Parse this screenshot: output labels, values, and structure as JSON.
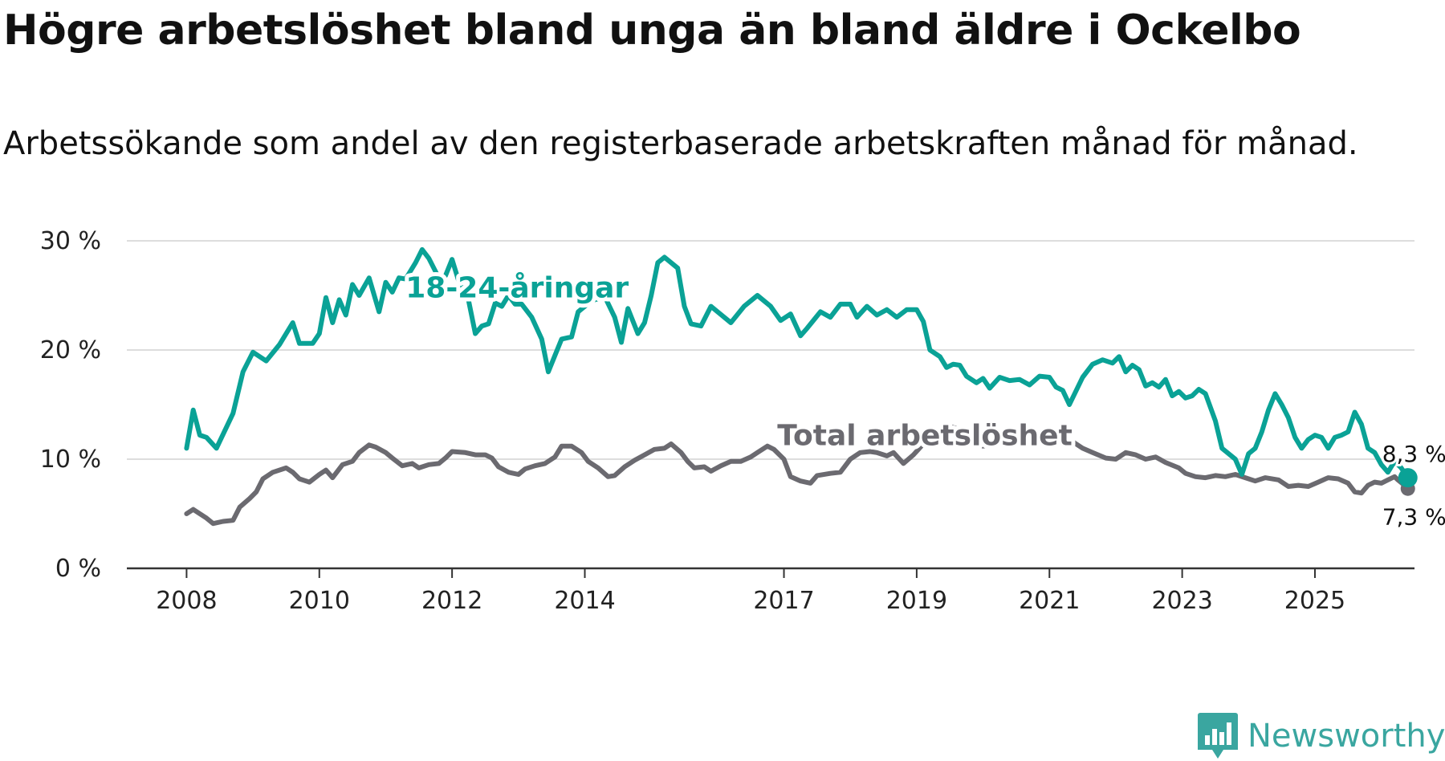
{
  "title": "Högre arbetslöshet bland unga än bland äldre i Ockelbo",
  "subtitle": "Arbetssökande som andel av den registerbaserade arbetskraften månad för månad.",
  "brand": {
    "name": "Newsworthy",
    "icon": "bar-chart-logo-icon"
  },
  "colors": {
    "youth": "#0aa296",
    "total": "#6b6a70",
    "grid": "#dddddd",
    "axis": "#333333",
    "brand": "#3aa6a0"
  },
  "chart_data": {
    "type": "line",
    "title": "Högre arbetslöshet bland unga än bland äldre i Ockelbo",
    "xlabel": "",
    "ylabel": "",
    "ylim": [
      0,
      30
    ],
    "y_ticks": [
      0,
      10,
      20,
      30
    ],
    "y_tick_labels": [
      "0 %",
      "10 %",
      "20 %",
      "30 %"
    ],
    "x_ticks": [
      2008,
      2010,
      2012,
      2014,
      2017,
      2019,
      2021,
      2023,
      2025
    ],
    "x_tick_labels": [
      "2008",
      "2010",
      "2012",
      "2014",
      "2017",
      "2019",
      "2021",
      "2023",
      "2025"
    ],
    "xlim": [
      2007.1,
      2026.5
    ],
    "series": [
      {
        "name": "18-24-åringar",
        "key": "youth",
        "end_label": "8,3 %",
        "points": [
          [
            2008.0,
            11.0
          ],
          [
            2008.1,
            14.5
          ],
          [
            2008.2,
            12.2
          ],
          [
            2008.3,
            12.0
          ],
          [
            2008.45,
            11.0
          ],
          [
            2008.7,
            14.2
          ],
          [
            2008.85,
            18.0
          ],
          [
            2009.0,
            19.8
          ],
          [
            2009.2,
            19.0
          ],
          [
            2009.4,
            20.5
          ],
          [
            2009.6,
            22.5
          ],
          [
            2009.7,
            20.6
          ],
          [
            2009.9,
            20.6
          ],
          [
            2010.0,
            21.5
          ],
          [
            2010.1,
            24.8
          ],
          [
            2010.2,
            22.5
          ],
          [
            2010.3,
            24.6
          ],
          [
            2010.4,
            23.2
          ],
          [
            2010.5,
            26.0
          ],
          [
            2010.6,
            25.0
          ],
          [
            2010.75,
            26.6
          ],
          [
            2010.9,
            23.5
          ],
          [
            2011.0,
            26.2
          ],
          [
            2011.1,
            25.3
          ],
          [
            2011.2,
            26.6
          ],
          [
            2011.3,
            26.5
          ],
          [
            2011.45,
            28.0
          ],
          [
            2011.55,
            29.2
          ],
          [
            2011.65,
            28.4
          ],
          [
            2011.8,
            26.6
          ],
          [
            2011.9,
            26.8
          ],
          [
            2012.0,
            28.3
          ],
          [
            2012.1,
            26.3
          ],
          [
            2012.25,
            24.5
          ],
          [
            2012.35,
            21.5
          ],
          [
            2012.45,
            22.2
          ],
          [
            2012.55,
            22.4
          ],
          [
            2012.65,
            24.3
          ],
          [
            2012.75,
            24.0
          ],
          [
            2012.85,
            25.0
          ],
          [
            2012.95,
            24.2
          ],
          [
            2013.05,
            24.2
          ],
          [
            2013.2,
            23.0
          ],
          [
            2013.35,
            21.0
          ],
          [
            2013.45,
            18.0
          ],
          [
            2013.55,
            19.5
          ],
          [
            2013.65,
            21.0
          ],
          [
            2013.8,
            21.2
          ],
          [
            2013.9,
            23.5
          ],
          [
            2014.1,
            24.5
          ],
          [
            2014.3,
            24.9
          ],
          [
            2014.45,
            23.0
          ],
          [
            2014.55,
            20.7
          ],
          [
            2014.65,
            23.8
          ],
          [
            2014.8,
            21.5
          ],
          [
            2014.9,
            22.5
          ],
          [
            2015.0,
            25.0
          ],
          [
            2015.1,
            28.0
          ],
          [
            2015.2,
            28.5
          ],
          [
            2015.4,
            27.5
          ],
          [
            2015.5,
            24.0
          ],
          [
            2015.6,
            22.4
          ],
          [
            2015.75,
            22.2
          ],
          [
            2015.9,
            24.0
          ],
          [
            2016.0,
            23.5
          ],
          [
            2016.2,
            22.5
          ],
          [
            2016.4,
            24.0
          ],
          [
            2016.6,
            25.0
          ],
          [
            2016.8,
            24.0
          ],
          [
            2016.95,
            22.7
          ],
          [
            2017.1,
            23.3
          ],
          [
            2017.25,
            21.3
          ],
          [
            2017.35,
            22.0
          ],
          [
            2017.55,
            23.5
          ],
          [
            2017.7,
            23.0
          ],
          [
            2017.85,
            24.2
          ],
          [
            2018.0,
            24.2
          ],
          [
            2018.1,
            23.0
          ],
          [
            2018.25,
            24.0
          ],
          [
            2018.4,
            23.2
          ],
          [
            2018.55,
            23.7
          ],
          [
            2018.7,
            23.0
          ],
          [
            2018.85,
            23.7
          ],
          [
            2019.0,
            23.7
          ],
          [
            2019.1,
            22.6
          ],
          [
            2019.2,
            20.0
          ],
          [
            2019.35,
            19.4
          ],
          [
            2019.45,
            18.4
          ],
          [
            2019.55,
            18.7
          ],
          [
            2019.65,
            18.6
          ],
          [
            2019.75,
            17.6
          ],
          [
            2019.9,
            17.0
          ],
          [
            2020.0,
            17.4
          ],
          [
            2020.1,
            16.5
          ],
          [
            2020.25,
            17.5
          ],
          [
            2020.4,
            17.2
          ],
          [
            2020.55,
            17.3
          ],
          [
            2020.7,
            16.8
          ],
          [
            2020.85,
            17.6
          ],
          [
            2021.0,
            17.5
          ],
          [
            2021.1,
            16.6
          ],
          [
            2021.2,
            16.3
          ],
          [
            2021.3,
            15.0
          ],
          [
            2021.5,
            17.5
          ],
          [
            2021.65,
            18.7
          ],
          [
            2021.8,
            19.1
          ],
          [
            2021.95,
            18.8
          ],
          [
            2022.05,
            19.4
          ],
          [
            2022.15,
            18.0
          ],
          [
            2022.25,
            18.6
          ],
          [
            2022.35,
            18.2
          ],
          [
            2022.45,
            16.7
          ],
          [
            2022.55,
            17.0
          ],
          [
            2022.65,
            16.6
          ],
          [
            2022.75,
            17.3
          ],
          [
            2022.85,
            15.8
          ],
          [
            2022.95,
            16.2
          ],
          [
            2023.05,
            15.6
          ],
          [
            2023.15,
            15.8
          ],
          [
            2023.25,
            16.4
          ],
          [
            2023.35,
            16.0
          ],
          [
            2023.5,
            13.5
          ],
          [
            2023.6,
            11.0
          ],
          [
            2023.8,
            10.0
          ],
          [
            2023.9,
            8.6
          ],
          [
            2024.0,
            10.5
          ],
          [
            2024.1,
            11.0
          ],
          [
            2024.2,
            12.5
          ],
          [
            2024.3,
            14.5
          ],
          [
            2024.4,
            16.0
          ],
          [
            2024.5,
            15.0
          ],
          [
            2024.6,
            13.8
          ],
          [
            2024.7,
            12.0
          ],
          [
            2024.8,
            11.0
          ],
          [
            2024.9,
            11.8
          ],
          [
            2025.0,
            12.2
          ],
          [
            2025.1,
            12.0
          ],
          [
            2025.2,
            11.0
          ],
          [
            2025.3,
            12.0
          ],
          [
            2025.4,
            12.2
          ],
          [
            2025.5,
            12.5
          ],
          [
            2025.6,
            14.3
          ],
          [
            2025.7,
            13.2
          ],
          [
            2025.8,
            11.0
          ],
          [
            2025.9,
            10.6
          ],
          [
            2026.0,
            9.5
          ],
          [
            2026.1,
            8.8
          ],
          [
            2026.2,
            9.8
          ],
          [
            2026.3,
            9.2
          ],
          [
            2026.4,
            8.3
          ]
        ]
      },
      {
        "name": "Total arbetslöshet",
        "key": "total",
        "end_label": "7,3 %",
        "points": [
          [
            2008.0,
            5.0
          ],
          [
            2008.1,
            5.4
          ],
          [
            2008.2,
            5.0
          ],
          [
            2008.3,
            4.6
          ],
          [
            2008.4,
            4.1
          ],
          [
            2008.55,
            4.3
          ],
          [
            2008.7,
            4.4
          ],
          [
            2008.8,
            5.6
          ],
          [
            2008.95,
            6.4
          ],
          [
            2009.05,
            7.0
          ],
          [
            2009.15,
            8.2
          ],
          [
            2009.3,
            8.8
          ],
          [
            2009.5,
            9.2
          ],
          [
            2009.6,
            8.8
          ],
          [
            2009.7,
            8.2
          ],
          [
            2009.85,
            7.9
          ],
          [
            2010.0,
            8.6
          ],
          [
            2010.1,
            9.0
          ],
          [
            2010.2,
            8.3
          ],
          [
            2010.35,
            9.5
          ],
          [
            2010.5,
            9.8
          ],
          [
            2010.6,
            10.6
          ],
          [
            2010.75,
            11.3
          ],
          [
            2010.85,
            11.1
          ],
          [
            2011.0,
            10.6
          ],
          [
            2011.1,
            10.1
          ],
          [
            2011.25,
            9.4
          ],
          [
            2011.4,
            9.6
          ],
          [
            2011.5,
            9.2
          ],
          [
            2011.65,
            9.5
          ],
          [
            2011.8,
            9.6
          ],
          [
            2011.9,
            10.1
          ],
          [
            2012.0,
            10.7
          ],
          [
            2012.2,
            10.6
          ],
          [
            2012.35,
            10.4
          ],
          [
            2012.5,
            10.4
          ],
          [
            2012.6,
            10.1
          ],
          [
            2012.7,
            9.3
          ],
          [
            2012.85,
            8.8
          ],
          [
            2013.0,
            8.6
          ],
          [
            2013.1,
            9.1
          ],
          [
            2013.25,
            9.4
          ],
          [
            2013.4,
            9.6
          ],
          [
            2013.55,
            10.2
          ],
          [
            2013.65,
            11.2
          ],
          [
            2013.8,
            11.2
          ],
          [
            2013.95,
            10.6
          ],
          [
            2014.05,
            9.8
          ],
          [
            2014.2,
            9.2
          ],
          [
            2014.35,
            8.4
          ],
          [
            2014.45,
            8.5
          ],
          [
            2014.6,
            9.3
          ],
          [
            2014.75,
            9.9
          ],
          [
            2014.9,
            10.4
          ],
          [
            2015.05,
            10.9
          ],
          [
            2015.2,
            11.0
          ],
          [
            2015.3,
            11.4
          ],
          [
            2015.45,
            10.6
          ],
          [
            2015.55,
            9.8
          ],
          [
            2015.65,
            9.2
          ],
          [
            2015.8,
            9.3
          ],
          [
            2015.9,
            8.9
          ],
          [
            2016.05,
            9.4
          ],
          [
            2016.2,
            9.8
          ],
          [
            2016.35,
            9.8
          ],
          [
            2016.5,
            10.2
          ],
          [
            2016.6,
            10.6
          ],
          [
            2016.75,
            11.2
          ],
          [
            2016.85,
            10.9
          ],
          [
            2017.0,
            10.0
          ],
          [
            2017.1,
            8.4
          ],
          [
            2017.25,
            8.0
          ],
          [
            2017.4,
            7.8
          ],
          [
            2017.5,
            8.5
          ],
          [
            2017.7,
            8.7
          ],
          [
            2017.85,
            8.8
          ],
          [
            2018.0,
            10.0
          ],
          [
            2018.15,
            10.6
          ],
          [
            2018.3,
            10.7
          ],
          [
            2018.4,
            10.6
          ],
          [
            2018.55,
            10.3
          ],
          [
            2018.65,
            10.6
          ],
          [
            2018.8,
            9.6
          ],
          [
            2018.95,
            10.4
          ],
          [
            2019.1,
            11.4
          ],
          [
            2019.25,
            12.0
          ],
          [
            2019.4,
            12.6
          ],
          [
            2019.5,
            13.0
          ],
          [
            2019.6,
            12.8
          ],
          [
            2019.7,
            12.0
          ],
          [
            2019.85,
            11.6
          ],
          [
            2020.0,
            11.2
          ],
          [
            2020.15,
            11.3
          ],
          [
            2020.3,
            11.8
          ],
          [
            2020.45,
            12.3
          ],
          [
            2020.6,
            12.6
          ],
          [
            2020.75,
            12.4
          ],
          [
            2020.9,
            11.8
          ],
          [
            2021.0,
            11.5
          ],
          [
            2021.2,
            11.4
          ],
          [
            2021.35,
            11.6
          ],
          [
            2021.5,
            11.0
          ],
          [
            2021.65,
            10.6
          ],
          [
            2021.85,
            10.1
          ],
          [
            2022.0,
            10.0
          ],
          [
            2022.15,
            10.6
          ],
          [
            2022.3,
            10.4
          ],
          [
            2022.45,
            10.0
          ],
          [
            2022.6,
            10.2
          ],
          [
            2022.75,
            9.7
          ],
          [
            2022.95,
            9.2
          ],
          [
            2023.05,
            8.7
          ],
          [
            2023.2,
            8.4
          ],
          [
            2023.35,
            8.3
          ],
          [
            2023.5,
            8.5
          ],
          [
            2023.65,
            8.4
          ],
          [
            2023.8,
            8.6
          ],
          [
            2023.95,
            8.3
          ],
          [
            2024.1,
            8.0
          ],
          [
            2024.25,
            8.3
          ],
          [
            2024.45,
            8.1
          ],
          [
            2024.6,
            7.5
          ],
          [
            2024.75,
            7.6
          ],
          [
            2024.9,
            7.5
          ],
          [
            2025.05,
            7.9
          ],
          [
            2025.2,
            8.3
          ],
          [
            2025.35,
            8.2
          ],
          [
            2025.5,
            7.8
          ],
          [
            2025.6,
            7.0
          ],
          [
            2025.7,
            6.9
          ],
          [
            2025.8,
            7.6
          ],
          [
            2025.9,
            7.9
          ],
          [
            2026.0,
            7.8
          ],
          [
            2026.1,
            8.1
          ],
          [
            2026.2,
            8.4
          ],
          [
            2026.25,
            8.1
          ],
          [
            2026.35,
            7.6
          ],
          [
            2026.4,
            7.3
          ]
        ]
      }
    ],
    "legend": "inline labels on lines"
  }
}
